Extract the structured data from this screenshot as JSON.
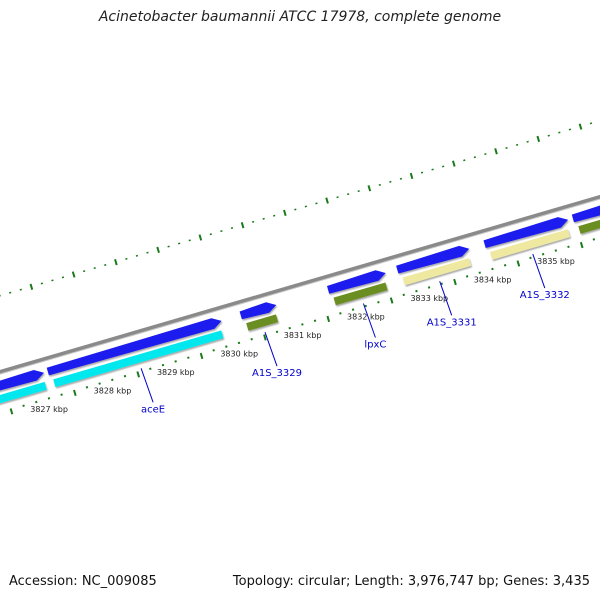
{
  "title": "Acinetobacter baumannii ATCC 17978, complete genome",
  "footer": {
    "accession": "Accession: NC_009085",
    "topology": "Topology: circular; Length: 3,976,747 bp; Genes: 3,435"
  },
  "colors": {
    "backbone": "#8a8a8a",
    "tick": "#1a7a1a",
    "cds": "#1a1aee",
    "gene_label": "#0000cc",
    "cog_cyan": "#00e8ee",
    "cog_green": "#6b8e23",
    "cog_khaki": "#eee8a0"
  },
  "scale": {
    "unit": "kbp",
    "ticks": [
      "3827 kbp",
      "3828 kbp",
      "3829 kbp",
      "3830 kbp",
      "3831 kbp",
      "3832 kbp",
      "3833 kbp",
      "3834 kbp",
      "3835 kbp"
    ]
  },
  "genes": [
    {
      "name": "aceE",
      "cog_color": "cyan"
    },
    {
      "name": "A1S_3329",
      "cog_color": "green"
    },
    {
      "name": "lpxC",
      "cog_color": "green"
    },
    {
      "name": "A1S_3331",
      "cog_color": "khaki"
    },
    {
      "name": "A1S_3332",
      "cog_color": "khaki"
    }
  ]
}
